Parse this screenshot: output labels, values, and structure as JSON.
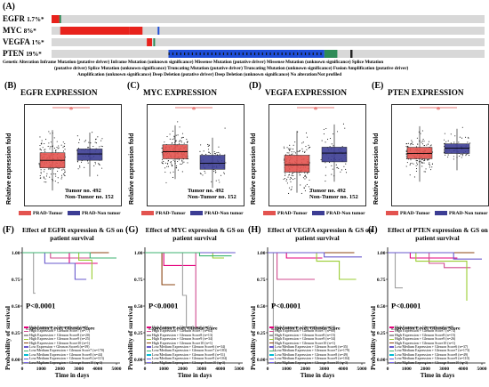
{
  "panel_a": {
    "letter": "(A)",
    "genes": [
      {
        "name": "EGFR",
        "pct": "1.7%*"
      },
      {
        "name": "MYC",
        "pct": "8%*"
      },
      {
        "name": "VEGFA",
        "pct": "1%*"
      },
      {
        "name": "PTEN",
        "pct": "19%*"
      }
    ],
    "legend_lines": [
      "Genetic Alteration Inframe Mutation (putative driver) Inframe Mutation (unknown significance) Missense Mutation (putative driver) Missense Mutation (unknown significance) Splice Mutation",
      "(putative driver) Splice Mutation (unknown significance) Truncating Mutation (putative driver) Truncating Mutation (unknown significance) Fusion Amplification (putative driver)",
      "Amplification (unknown significance) Deep Deletion (putative driver) Deep Deletion (unknown significance) No alteration/Not profiled"
    ],
    "colors": {
      "amp": "#e8221c",
      "del": "#1f4ed8",
      "mut": "#2e8b57",
      "truncating": "#222222",
      "track": "#d8d8d8"
    }
  },
  "boxplots": [
    {
      "letter": "(B)",
      "title": "EGFR EXPRESSION",
      "star": "*",
      "tumor_note": "Tumor no. 492",
      "normal_note": "Non-Tumor no. 152",
      "tumor": {
        "q1": 2.5,
        "median": 3.1,
        "q3": 3.7,
        "lo": 0.7,
        "hi": 5.5
      },
      "normal": {
        "q1": 3.1,
        "median": 3.6,
        "q3": 4.0,
        "lo": 1.8,
        "hi": 5.3
      },
      "ymax": 7
    },
    {
      "letter": "(C)",
      "title": "MYC EXPRESSION",
      "star": "*",
      "tumor_note": "Tumor no. 492",
      "normal_note": "Non-Tumor no. 152",
      "tumor": {
        "q1": 4.6,
        "median": 5.4,
        "q3": 6.2,
        "lo": 2.3,
        "hi": 8.4
      },
      "normal": {
        "q1": 3.4,
        "median": 4.1,
        "q3": 5.0,
        "lo": 1.3,
        "hi": 7.0
      },
      "ymax": 10
    },
    {
      "letter": "(D)",
      "title": "VEGFA EXPRESSION",
      "star": "*",
      "tumor_note": "Tumor no. 492",
      "normal_note": "Non-Tumor no. 152",
      "tumor": {
        "q1": 3.7,
        "median": 4.7,
        "q3": 6.0,
        "lo": 0.9,
        "hi": 9.3
      },
      "normal": {
        "q1": 5.1,
        "median": 6.3,
        "q3": 7.1,
        "lo": 2.4,
        "hi": 10.2
      },
      "ymax": 12
    },
    {
      "letter": "(E)",
      "title": "PTEN EXPRESSION",
      "star": "*",
      "tumor_note": "",
      "normal_note": "",
      "tumor": {
        "q1": 4.6,
        "median": 5.2,
        "q3": 5.9,
        "lo": 2.0,
        "hi": 8.3
      },
      "normal": {
        "q1": 5.2,
        "median": 5.8,
        "q3": 6.3,
        "lo": 3.3,
        "hi": 8.0
      },
      "ymax": 10
    }
  ],
  "box_common": {
    "ylabel": "Relative expression fold",
    "key_tumor": "PRAD-Tumor",
    "key_normal": "PRAD-Non tumor",
    "tumor_color": "#e3534f",
    "normal_color": "#3c3d94"
  },
  "survival": [
    {
      "letter": "(F)",
      "title": "Effect of EGFR expression & GS on",
      "title2": "patient survival",
      "pvalue": "P<0.0001",
      "legend_title": "Expression Level, Gleason Score",
      "legend": [
        "High Expression + Gleason Score6 (n=6)",
        "High Expression + Gleason Score7 (n=77)",
        "High Expression + Gleason Score8 (n=20)",
        "High Expression + Gleason Score9 (n=25)",
        "High Expression + Gleason Score10 (n=1)",
        "Low Expression + Gleason Score6 (n=39)",
        "Low/Medium Expression + Gleason Score7 (n=170)",
        "Low/Medium Expression + Gleason Score8 (n=44)",
        "Low/Medium Expression + Gleason Score9 (n=113)",
        "Low/Medium Expression + Gleason Score10 (n=3)"
      ]
    },
    {
      "letter": "(G)",
      "title": "Effect of MYC expression & GS on",
      "title2": "patient survival",
      "pvalue": "P<0.0001",
      "legend_title": "Expression Level, Gleason Score",
      "legend": [
        "High Expression + Gleason Score6 (n=11)",
        "High Expression + Gleason Score7 (n=64)",
        "High Expression + Gleason Score8 (n=13)",
        "High Expression + Gleason Score9 (n=34)",
        "High Expression + Gleason Score10 (n=1)",
        "Low/Medium Expression + Gleason Score6 (n=34)",
        "Low/Medium Expression + Gleason Score7 (n=183)",
        "Low/Medium Expression + Gleason Score8 (n=51)",
        "Low/Medium Expression + Gleason Score9 (n=104)",
        "Low/Medium Expression + Gleason Score10 (n=3)"
      ]
    },
    {
      "letter": "(H)",
      "title": "Effect of VEGFA expression & GS on",
      "title2": "patient survival",
      "pvalue": "P<0.0001",
      "legend_title": "Expression Level, Gleason Score",
      "legend": [
        "High Expression + Gleason Score6 (n=10)",
        "High Expression + Gleason Score7 (n=68)",
        "High Expression + Gleason Score8 (n=15)",
        "High Expression + Gleason Score9 (n=34)",
        "High Expression + Gleason Score10 (n=1)",
        "Low/Medium Expression + Gleason Score6 (n=35)",
        "Low/Medium Expression + Gleason Score7 (n=179)",
        "Low/Medium Expression + Gleason Score8 (n=49)",
        "Low/Medium Expression + Gleason Score9 (n=104)",
        "Low/Medium Expression + Gleason Score10 (n=3)"
      ]
    },
    {
      "letter": "(I)",
      "title": "Effect of PTEN expression & GS on",
      "title2": "patient survival",
      "pvalue": "P<0.0001",
      "legend_title": "Expression Level, Gleason Score",
      "legend": [
        "High Expression + Gleason Score6 (n=8)",
        "High Expression + Gleason Score7 (n=74)",
        "High Expression + Gleason Score8 (n=15)",
        "High Expression + Gleason Score9 (n=26)",
        "High Expression + Gleason Score10 (n=1)",
        "Low/Medium Expression + Gleason Score6 (n=37)",
        "Low/Medium Expression + Gleason Score7 (n=173)",
        "Low/Medium Expression + Gleason Score8 (n=49)",
        "Low/Medium Expression + Gleason Score9 (n=110)",
        "Low/Medium Expression + Gleason Score10 (n=3)"
      ]
    }
  ],
  "surv_common": {
    "ylabel": "Probability of survival",
    "xlabel": "Time in days",
    "yticks": [
      "0.00",
      "0.25",
      "0.50",
      "0.75",
      "1.00"
    ],
    "xticks": [
      "0",
      "1000",
      "2000",
      "3000",
      "4000",
      "5000"
    ],
    "line_colors": [
      "#e4007c",
      "#d14b8f",
      "#a0a0a0",
      "#9acd32",
      "#8b4513",
      "#6a5acd",
      "#3cb371",
      "#00bcd4",
      "#5a5ad8",
      "#7b68ee"
    ]
  }
}
